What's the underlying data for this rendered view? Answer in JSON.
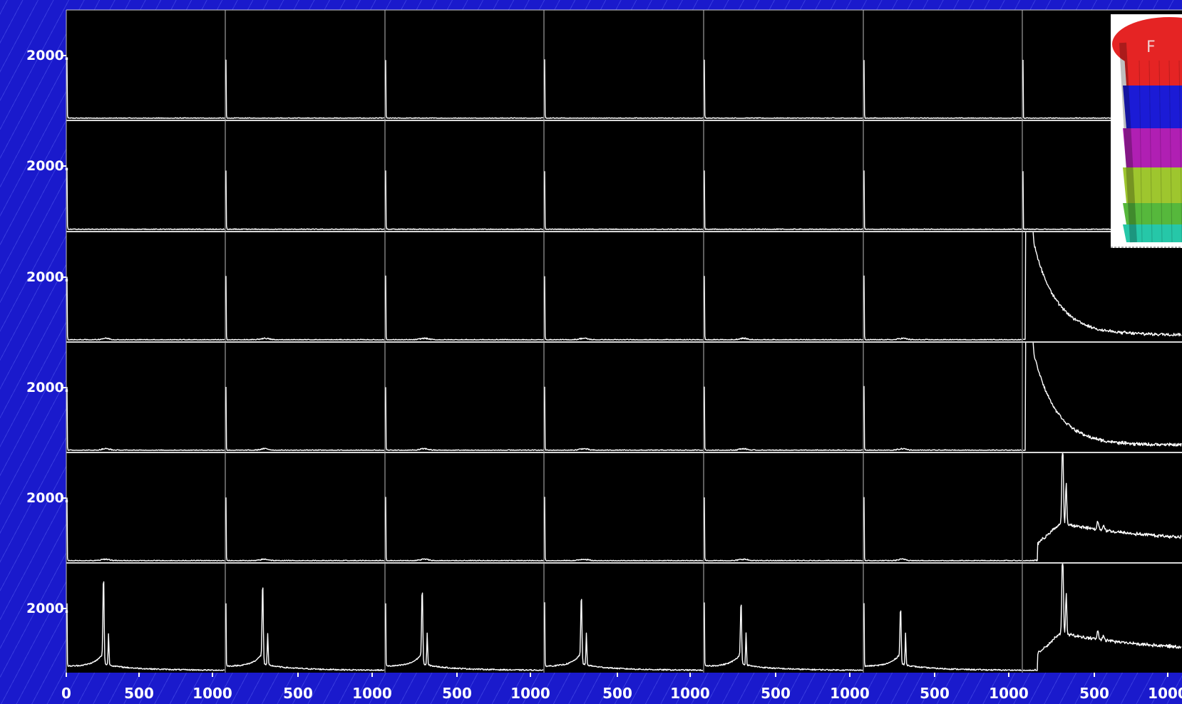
{
  "chart_data": {
    "type": "line",
    "grid": {
      "rows": 6,
      "cols": 7
    },
    "xlim": [
      0,
      1100
    ],
    "ylim": [
      0,
      2500
    ],
    "x_tick_labels": [
      "0",
      "500",
      "1000",
      "500",
      "1000",
      "500",
      "1000",
      "500",
      "1000",
      "500",
      "1000",
      "500",
      "1000",
      "500",
      "1000"
    ],
    "y_tick_labels": [
      "2000.",
      "2000.",
      "2000.",
      "2000.",
      "2000.",
      "2000."
    ],
    "series_note": "",
    "panels_peak_rows": {
      "row6_peaks_x": [
        270,
        270,
        270,
        270,
        270,
        270,
        270
      ]
    },
    "inset": {
      "labels": [
        "F"
      ],
      "layer_colors": [
        "#e52424",
        "#1b1bd6",
        "#b01fb3",
        "#9ec62e",
        "#56b83c",
        "#26c7a8"
      ]
    }
  }
}
